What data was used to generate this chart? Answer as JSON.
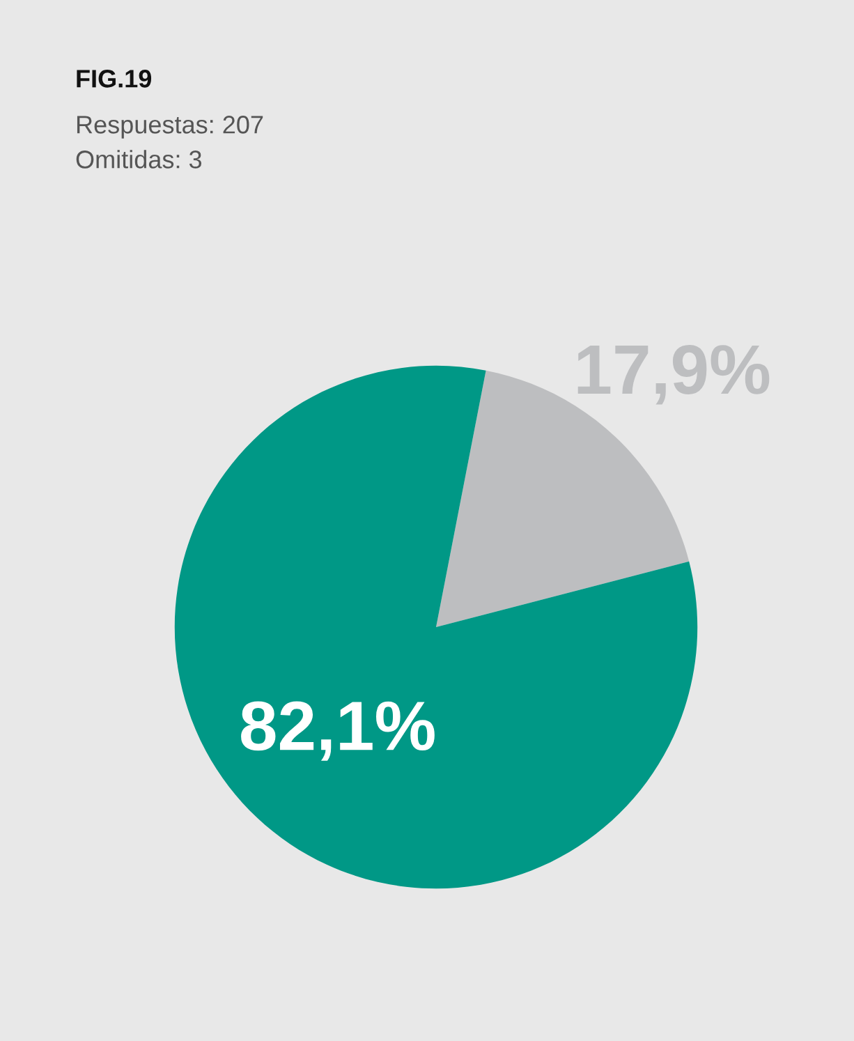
{
  "chart_data": {
    "type": "pie",
    "title": "FIG.19",
    "subtitle": "Respuestas: 207",
    "annotations": [
      "Omitidas: 3"
    ],
    "categories": [
      null,
      null
    ],
    "values": [
      17.9,
      82.1
    ],
    "colors": [
      "#bdbec0",
      "#009886"
    ],
    "value_labels": [
      "17,9%",
      "82,1%"
    ],
    "legend": false
  }
}
